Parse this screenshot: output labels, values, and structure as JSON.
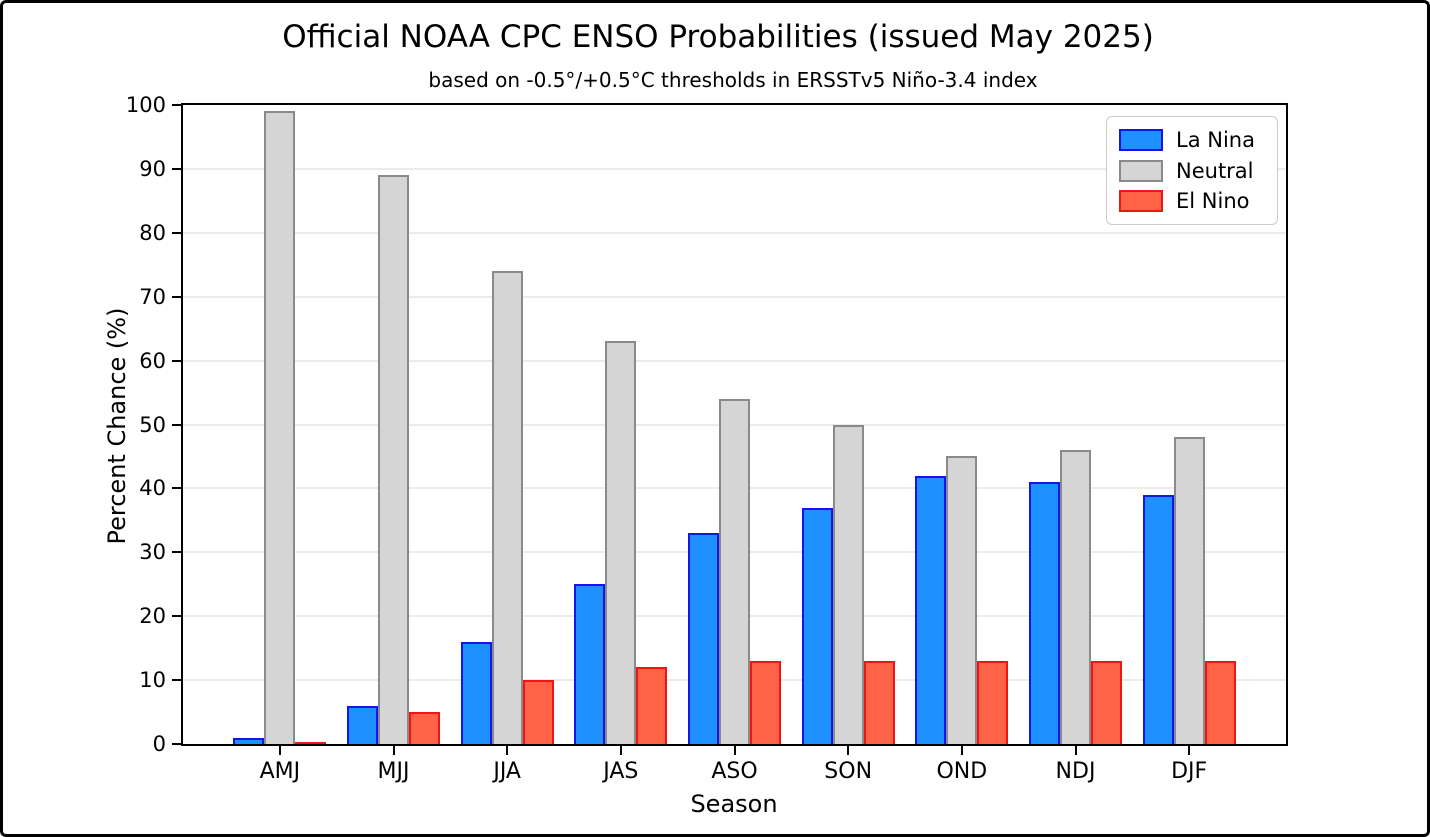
{
  "chart_data": {
    "type": "bar",
    "title": "Official NOAA CPC ENSO Probabilities (issued May 2025)",
    "subtitle": "based on -0.5°/+0.5°C thresholds in ERSSTv5 Niño-3.4 index",
    "xlabel": "Season",
    "ylabel": "Percent Chance (%)",
    "categories": [
      "AMJ",
      "MJJ",
      "JJA",
      "JAS",
      "ASO",
      "SON",
      "OND",
      "NDJ",
      "DJF"
    ],
    "series": [
      {
        "name": "La Nina",
        "color": "#1E90FF",
        "edge_color": "#1414F0",
        "values": [
          1,
          6,
          16,
          25,
          33,
          37,
          42,
          41,
          39
        ]
      },
      {
        "name": "Neutral",
        "color": "#D5D5D5",
        "edge_color": "#8A8A8A",
        "values": [
          99,
          89,
          74,
          63,
          54,
          50,
          45,
          46,
          48
        ]
      },
      {
        "name": "El Nino",
        "color": "#FF6347",
        "edge_color": "#F01414",
        "values": [
          0,
          5,
          10,
          12,
          13,
          13,
          13,
          13,
          13
        ]
      }
    ],
    "ylim": [
      0,
      100
    ],
    "yticks": [
      0,
      10,
      20,
      30,
      40,
      50,
      60,
      70,
      80,
      90,
      100
    ],
    "grid": true,
    "legend_position": "upper right"
  }
}
